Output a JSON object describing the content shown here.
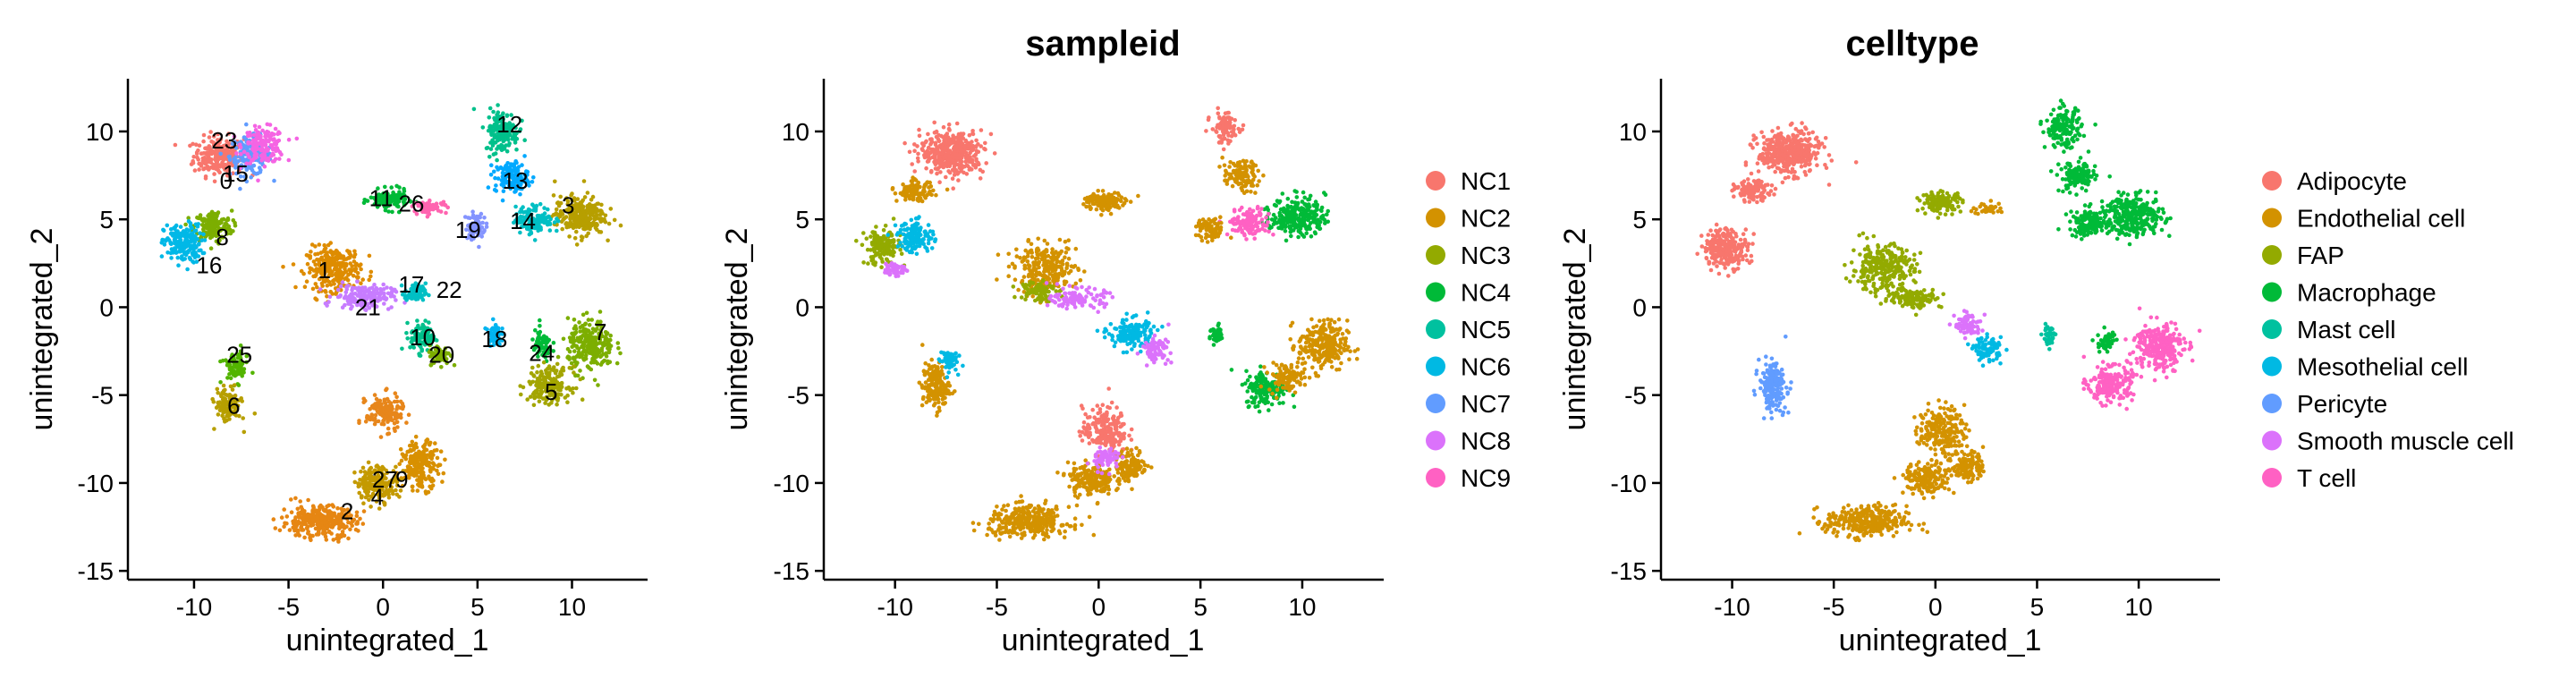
{
  "chart_data": [
    {
      "type": "scatter",
      "title": "",
      "xlabel": "unintegrated_1",
      "ylabel": "unintegrated_2",
      "xlim": [
        -13.5,
        14
      ],
      "ylim": [
        -15.5,
        13
      ],
      "xticks": [
        -10,
        -5,
        0,
        5,
        10
      ],
      "yticks": [
        10,
        5,
        0,
        -5,
        -10,
        -15
      ],
      "grid": false,
      "legend": "none",
      "color_by": "seurat_clusters",
      "cluster_labels": [
        {
          "label": "0",
          "x": -8.3,
          "y": 7.2
        },
        {
          "label": "1",
          "x": -3.1,
          "y": 2.1
        },
        {
          "label": "2",
          "x": -1.9,
          "y": -11.6
        },
        {
          "label": "3",
          "x": 9.8,
          "y": 5.8
        },
        {
          "label": "4",
          "x": -0.3,
          "y": -10.8
        },
        {
          "label": "5",
          "x": 8.9,
          "y": -4.8
        },
        {
          "label": "6",
          "x": -7.9,
          "y": -5.6
        },
        {
          "label": "7",
          "x": 11.5,
          "y": -1.4
        },
        {
          "label": "8",
          "x": -8.5,
          "y": 4.0
        },
        {
          "label": "9",
          "x": 1.0,
          "y": -9.8
        },
        {
          "label": "10",
          "x": 2.1,
          "y": -1.7
        },
        {
          "label": "11",
          "x": -0.1,
          "y": 6.2
        },
        {
          "label": "12",
          "x": 6.7,
          "y": 10.4
        },
        {
          "label": "13",
          "x": 7.0,
          "y": 7.2
        },
        {
          "label": "14",
          "x": 7.4,
          "y": 4.9
        },
        {
          "label": "15",
          "x": -7.8,
          "y": 7.6
        },
        {
          "label": "16",
          "x": -9.2,
          "y": 2.4
        },
        {
          "label": "17",
          "x": 1.5,
          "y": 1.3
        },
        {
          "label": "18",
          "x": 5.9,
          "y": -1.8
        },
        {
          "label": "19",
          "x": 4.5,
          "y": 4.4
        },
        {
          "label": "20",
          "x": 3.1,
          "y": -2.7
        },
        {
          "label": "21",
          "x": -0.8,
          "y": 0.0
        },
        {
          "label": "22",
          "x": 3.5,
          "y": 1.0
        },
        {
          "label": "23",
          "x": -8.4,
          "y": 9.5
        },
        {
          "label": "24",
          "x": 8.4,
          "y": -2.6
        },
        {
          "label": "25",
          "x": -7.6,
          "y": -2.7
        },
        {
          "label": "27",
          "x": 0.1,
          "y": -9.8
        },
        {
          "label": "26",
          "x": 1.5,
          "y": 5.9
        }
      ],
      "clusters": [
        {
          "label": "0",
          "x": -8.7,
          "y": 8.6,
          "sx": 1.2,
          "sy": 1.0,
          "n": 240,
          "color": "#F8766D"
        },
        {
          "label": "15",
          "x": -7.0,
          "y": 8.6,
          "sx": 1.0,
          "sy": 1.0,
          "n": 160,
          "color": "#619CFF"
        },
        {
          "label": "23",
          "x": -6.3,
          "y": 9.2,
          "sx": 1.0,
          "sy": 0.9,
          "n": 160,
          "color": "#F564E3"
        },
        {
          "label": "8",
          "x": -9.0,
          "y": 4.6,
          "sx": 0.9,
          "sy": 0.8,
          "n": 170,
          "color": "#7CAE00"
        },
        {
          "label": "16",
          "x": -10.6,
          "y": 3.6,
          "sx": 0.9,
          "sy": 1.0,
          "n": 200,
          "color": "#00B8E7"
        },
        {
          "label": "1",
          "x": -2.6,
          "y": 2.2,
          "sx": 1.3,
          "sy": 1.1,
          "n": 280,
          "color": "#DE8C00"
        },
        {
          "label": "11",
          "x": 0.3,
          "y": 6.1,
          "sx": 0.9,
          "sy": 0.5,
          "n": 150,
          "color": "#00BA38"
        },
        {
          "label": "21",
          "x": -1.0,
          "y": 0.6,
          "sx": 1.4,
          "sy": 0.6,
          "n": 170,
          "color": "#C77CFF"
        },
        {
          "label": "17",
          "x": 1.7,
          "y": 0.8,
          "sx": 0.5,
          "sy": 0.5,
          "n": 80,
          "color": "#00BFC4"
        },
        {
          "label": "10",
          "x": 2.1,
          "y": -1.7,
          "sx": 0.6,
          "sy": 0.8,
          "n": 110,
          "color": "#00C08B"
        },
        {
          "label": "20",
          "x": 3.0,
          "y": -2.7,
          "sx": 0.5,
          "sy": 0.5,
          "n": 70,
          "color": "#7CAE00"
        },
        {
          "label": "12",
          "x": 6.3,
          "y": 10.0,
          "sx": 0.8,
          "sy": 1.1,
          "n": 160,
          "color": "#00C08B"
        },
        {
          "label": "13",
          "x": 6.8,
          "y": 7.4,
          "sx": 0.8,
          "sy": 0.8,
          "n": 130,
          "color": "#00A9FF"
        },
        {
          "label": "3",
          "x": 10.4,
          "y": 5.2,
          "sx": 1.2,
          "sy": 1.0,
          "n": 260,
          "color": "#B79F00"
        },
        {
          "label": "14",
          "x": 8.0,
          "y": 5.0,
          "sx": 0.9,
          "sy": 0.7,
          "n": 140,
          "color": "#00BFC4"
        },
        {
          "label": "19",
          "x": 4.9,
          "y": 4.6,
          "sx": 0.5,
          "sy": 0.7,
          "n": 70,
          "color": "#8494FF"
        },
        {
          "label": "18",
          "x": 5.9,
          "y": -1.5,
          "sx": 0.3,
          "sy": 0.6,
          "n": 50,
          "color": "#00B4F0"
        },
        {
          "label": "7",
          "x": 11.0,
          "y": -2.2,
          "sx": 1.1,
          "sy": 1.3,
          "n": 260,
          "color": "#7CAE00"
        },
        {
          "label": "24",
          "x": 8.4,
          "y": -2.2,
          "sx": 0.5,
          "sy": 0.8,
          "n": 70,
          "color": "#00BA38"
        },
        {
          "label": "5",
          "x": 8.8,
          "y": -4.4,
          "sx": 1.0,
          "sy": 0.9,
          "n": 200,
          "color": "#A3A500"
        },
        {
          "label": "25",
          "x": -7.8,
          "y": -3.4,
          "sx": 0.6,
          "sy": 0.8,
          "n": 80,
          "color": "#53B400"
        },
        {
          "label": "6",
          "x": -8.2,
          "y": -5.6,
          "sx": 0.6,
          "sy": 0.9,
          "n": 120,
          "color": "#B79F00"
        },
        {
          "label": "27",
          "x": 0.1,
          "y": -6.0,
          "sx": 0.9,
          "sy": 0.9,
          "n": 160,
          "color": "#E7861B"
        },
        {
          "label": "9",
          "x": 2.0,
          "y": -9.0,
          "sx": 0.9,
          "sy": 1.2,
          "n": 200,
          "color": "#D89000"
        },
        {
          "label": "4",
          "x": -0.3,
          "y": -10.0,
          "sx": 1.0,
          "sy": 0.9,
          "n": 200,
          "color": "#C49A00"
        },
        {
          "label": "2",
          "x": -3.4,
          "y": -12.2,
          "sx": 1.8,
          "sy": 0.8,
          "n": 320,
          "color": "#E68613"
        },
        {
          "label": "26",
          "x": 2.5,
          "y": 5.7,
          "sx": 0.8,
          "sy": 0.3,
          "n": 60,
          "color": "#FF64B0"
        }
      ]
    },
    {
      "type": "scatter",
      "title": "sampleid",
      "xlabel": "unintegrated_1",
      "ylabel": "unintegrated_2",
      "xlim": [
        -13.5,
        14
      ],
      "ylim": [
        -15.5,
        13
      ],
      "xticks": [
        -10,
        -5,
        0,
        5,
        10
      ],
      "yticks": [
        10,
        5,
        0,
        -5,
        -10,
        -15
      ],
      "grid": false,
      "legend": "right",
      "legend_entries": [
        {
          "name": "NC1",
          "color": "#F8766D"
        },
        {
          "name": "NC2",
          "color": "#D39200"
        },
        {
          "name": "NC3",
          "color": "#93AA00"
        },
        {
          "name": "NC4",
          "color": "#00BA38"
        },
        {
          "name": "NC5",
          "color": "#00C19F"
        },
        {
          "name": "NC6",
          "color": "#00B9E3"
        },
        {
          "name": "NC7",
          "color": "#619CFF"
        },
        {
          "name": "NC8",
          "color": "#DB72FB"
        },
        {
          "name": "NC9",
          "color": "#FF61C3"
        }
      ],
      "clusters": [
        {
          "x": -7.2,
          "y": 8.8,
          "sx": 1.4,
          "sy": 1.1,
          "n": 420,
          "color": "#F8766D"
        },
        {
          "x": -9.0,
          "y": 6.6,
          "sx": 0.8,
          "sy": 0.5,
          "n": 110,
          "color": "#D39200"
        },
        {
          "x": -10.6,
          "y": 3.4,
          "sx": 0.8,
          "sy": 0.9,
          "n": 160,
          "color": "#93AA00"
        },
        {
          "x": -9.0,
          "y": 4.0,
          "sx": 0.8,
          "sy": 0.8,
          "n": 130,
          "color": "#00B9E3"
        },
        {
          "x": -10.0,
          "y": 2.2,
          "sx": 0.5,
          "sy": 0.4,
          "n": 50,
          "color": "#DB72FB"
        },
        {
          "x": -2.6,
          "y": 2.2,
          "sx": 1.4,
          "sy": 1.2,
          "n": 260,
          "color": "#D39200"
        },
        {
          "x": -3.0,
          "y": 1.0,
          "sx": 0.8,
          "sy": 0.6,
          "n": 80,
          "color": "#93AA00"
        },
        {
          "x": 0.3,
          "y": 6.0,
          "sx": 0.9,
          "sy": 0.5,
          "n": 140,
          "color": "#D39200"
        },
        {
          "x": -1.0,
          "y": 0.5,
          "sx": 1.2,
          "sy": 0.5,
          "n": 110,
          "color": "#DB72FB"
        },
        {
          "x": 1.6,
          "y": -1.5,
          "sx": 1.0,
          "sy": 0.8,
          "n": 150,
          "color": "#00B9E3"
        },
        {
          "x": 2.8,
          "y": -2.4,
          "sx": 0.6,
          "sy": 0.6,
          "n": 80,
          "color": "#DB72FB"
        },
        {
          "x": 6.2,
          "y": 10.2,
          "sx": 0.6,
          "sy": 0.8,
          "n": 100,
          "color": "#F8766D"
        },
        {
          "x": 7.0,
          "y": 7.5,
          "sx": 0.8,
          "sy": 0.8,
          "n": 110,
          "color": "#D39200"
        },
        {
          "x": 9.8,
          "y": 5.2,
          "sx": 1.2,
          "sy": 1.0,
          "n": 260,
          "color": "#00BA38"
        },
        {
          "x": 7.4,
          "y": 4.8,
          "sx": 0.9,
          "sy": 0.7,
          "n": 140,
          "color": "#FF61C3"
        },
        {
          "x": 5.5,
          "y": 4.4,
          "sx": 0.6,
          "sy": 0.6,
          "n": 80,
          "color": "#D39200"
        },
        {
          "x": 5.8,
          "y": -1.6,
          "sx": 0.3,
          "sy": 0.5,
          "n": 45,
          "color": "#00BA38"
        },
        {
          "x": 11.0,
          "y": -2.2,
          "sx": 1.1,
          "sy": 1.3,
          "n": 260,
          "color": "#D39200"
        },
        {
          "x": 8.2,
          "y": -4.6,
          "sx": 0.9,
          "sy": 0.9,
          "n": 170,
          "color": "#00BA38"
        },
        {
          "x": 9.2,
          "y": -4.0,
          "sx": 0.8,
          "sy": 0.7,
          "n": 100,
          "color": "#D39200"
        },
        {
          "x": -8.0,
          "y": -4.5,
          "sx": 0.6,
          "sy": 1.2,
          "n": 160,
          "color": "#D39200"
        },
        {
          "x": -7.4,
          "y": -3.0,
          "sx": 0.4,
          "sy": 0.6,
          "n": 60,
          "color": "#00B9E3"
        },
        {
          "x": 0.3,
          "y": -7.0,
          "sx": 1.0,
          "sy": 1.2,
          "n": 200,
          "color": "#F8766D"
        },
        {
          "x": 1.6,
          "y": -9.0,
          "sx": 0.7,
          "sy": 0.8,
          "n": 130,
          "color": "#D39200"
        },
        {
          "x": -0.4,
          "y": -9.8,
          "sx": 1.0,
          "sy": 0.8,
          "n": 180,
          "color": "#D39200"
        },
        {
          "x": 0.4,
          "y": -8.6,
          "sx": 0.6,
          "sy": 0.6,
          "n": 70,
          "color": "#DB72FB"
        },
        {
          "x": -3.4,
          "y": -12.2,
          "sx": 1.8,
          "sy": 0.8,
          "n": 320,
          "color": "#D39200"
        }
      ]
    },
    {
      "type": "scatter",
      "title": "celltype",
      "xlabel": "unintegrated_1",
      "ylabel": "unintegrated_2",
      "xlim": [
        -13.5,
        14
      ],
      "ylim": [
        -15.5,
        13
      ],
      "xticks": [
        -10,
        -5,
        0,
        5,
        10
      ],
      "yticks": [
        10,
        5,
        0,
        -5,
        -10,
        -15
      ],
      "grid": false,
      "legend": "right",
      "legend_entries": [
        {
          "name": "Adipocyte",
          "color": "#F8766D"
        },
        {
          "name": "Endothelial cell",
          "color": "#D39200"
        },
        {
          "name": "FAP",
          "color": "#93AA00"
        },
        {
          "name": "Macrophage",
          "color": "#00BA38"
        },
        {
          "name": "Mast cell",
          "color": "#00C19F"
        },
        {
          "name": "Mesothelial cell",
          "color": "#00B9E3"
        },
        {
          "name": "Pericyte",
          "color": "#619CFF"
        },
        {
          "name": "Smooth muscle cell",
          "color": "#DB72FB"
        },
        {
          "name": "T cell",
          "color": "#FF61C3"
        }
      ],
      "clusters": [
        {
          "x": -7.2,
          "y": 8.8,
          "sx": 1.4,
          "sy": 1.1,
          "n": 420,
          "color": "#F8766D"
        },
        {
          "x": -9.0,
          "y": 6.6,
          "sx": 0.8,
          "sy": 0.5,
          "n": 110,
          "color": "#F8766D"
        },
        {
          "x": -10.3,
          "y": 3.4,
          "sx": 1.0,
          "sy": 1.0,
          "n": 260,
          "color": "#F8766D"
        },
        {
          "x": -2.6,
          "y": 2.2,
          "sx": 1.4,
          "sy": 1.2,
          "n": 280,
          "color": "#93AA00"
        },
        {
          "x": 0.3,
          "y": 6.0,
          "sx": 0.9,
          "sy": 0.5,
          "n": 140,
          "color": "#93AA00"
        },
        {
          "x": -1.0,
          "y": 0.5,
          "sx": 1.2,
          "sy": 0.5,
          "n": 110,
          "color": "#93AA00"
        },
        {
          "x": 2.6,
          "y": 5.6,
          "sx": 0.7,
          "sy": 0.3,
          "n": 40,
          "color": "#D39200"
        },
        {
          "x": 1.6,
          "y": -1.0,
          "sx": 0.6,
          "sy": 0.6,
          "n": 80,
          "color": "#DB72FB"
        },
        {
          "x": 2.6,
          "y": -2.4,
          "sx": 0.6,
          "sy": 0.6,
          "n": 90,
          "color": "#00B9E3"
        },
        {
          "x": 6.3,
          "y": 10.2,
          "sx": 0.8,
          "sy": 1.0,
          "n": 160,
          "color": "#00BA38"
        },
        {
          "x": 7.0,
          "y": 7.4,
          "sx": 0.8,
          "sy": 0.8,
          "n": 130,
          "color": "#00BA38"
        },
        {
          "x": 9.8,
          "y": 5.2,
          "sx": 1.3,
          "sy": 1.0,
          "n": 280,
          "color": "#00BA38"
        },
        {
          "x": 7.6,
          "y": 4.8,
          "sx": 0.9,
          "sy": 0.7,
          "n": 130,
          "color": "#00BA38"
        },
        {
          "x": 5.6,
          "y": -1.6,
          "sx": 0.3,
          "sy": 0.5,
          "n": 45,
          "color": "#00C19F"
        },
        {
          "x": 11.0,
          "y": -2.2,
          "sx": 1.1,
          "sy": 1.3,
          "n": 260,
          "color": "#FF61C3"
        },
        {
          "x": 8.6,
          "y": -4.4,
          "sx": 1.0,
          "sy": 0.9,
          "n": 200,
          "color": "#FF61C3"
        },
        {
          "x": 8.4,
          "y": -2.0,
          "sx": 0.4,
          "sy": 0.6,
          "n": 50,
          "color": "#00BA38"
        },
        {
          "x": -8.0,
          "y": -4.5,
          "sx": 0.6,
          "sy": 1.2,
          "n": 200,
          "color": "#619CFF"
        },
        {
          "x": 0.3,
          "y": -7.0,
          "sx": 1.0,
          "sy": 1.2,
          "n": 200,
          "color": "#D39200"
        },
        {
          "x": 1.6,
          "y": -9.0,
          "sx": 0.7,
          "sy": 0.8,
          "n": 130,
          "color": "#D39200"
        },
        {
          "x": -0.4,
          "y": -9.8,
          "sx": 1.0,
          "sy": 0.8,
          "n": 180,
          "color": "#D39200"
        },
        {
          "x": -3.4,
          "y": -12.2,
          "sx": 1.8,
          "sy": 0.8,
          "n": 320,
          "color": "#D39200"
        }
      ]
    }
  ]
}
